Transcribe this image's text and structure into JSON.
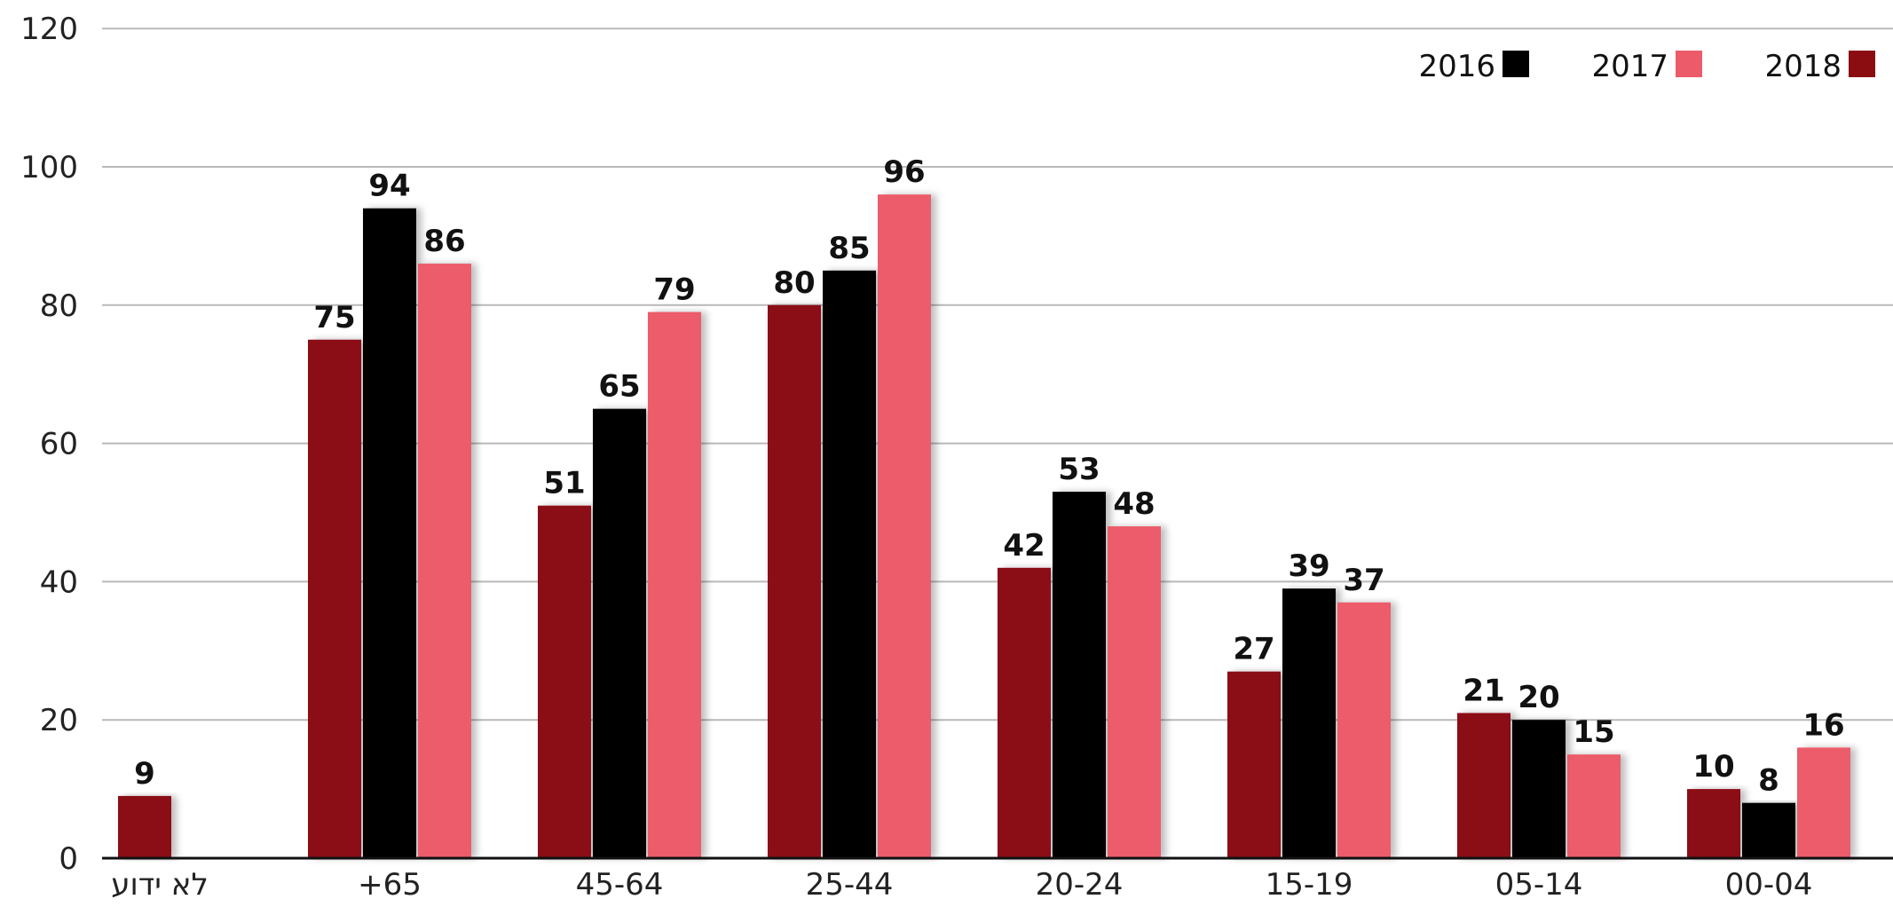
{
  "chart_data": {
    "type": "bar",
    "categories": [
      "לא ידוע",
      "+65",
      "45-64",
      "25-44",
      "20-24",
      "15-19",
      "05-14",
      "00-04"
    ],
    "series": [
      {
        "name": "2018",
        "color": "#8b0d12",
        "values": [
          9,
          75,
          51,
          80,
          42,
          27,
          21,
          10
        ]
      },
      {
        "name": "2016",
        "color": "#000000",
        "values": [
          null,
          94,
          65,
          85,
          53,
          39,
          20,
          8
        ]
      },
      {
        "name": "2017",
        "color": "#ec5b6a",
        "values": [
          null,
          86,
          79,
          96,
          48,
          37,
          15,
          16
        ]
      }
    ],
    "legend_order": [
      "2016",
      "2017",
      "2018"
    ],
    "legend_position": "top-right",
    "yticks": [
      0,
      20,
      40,
      60,
      80,
      100,
      120
    ],
    "ylim": [
      0,
      120
    ],
    "grid": true
  }
}
